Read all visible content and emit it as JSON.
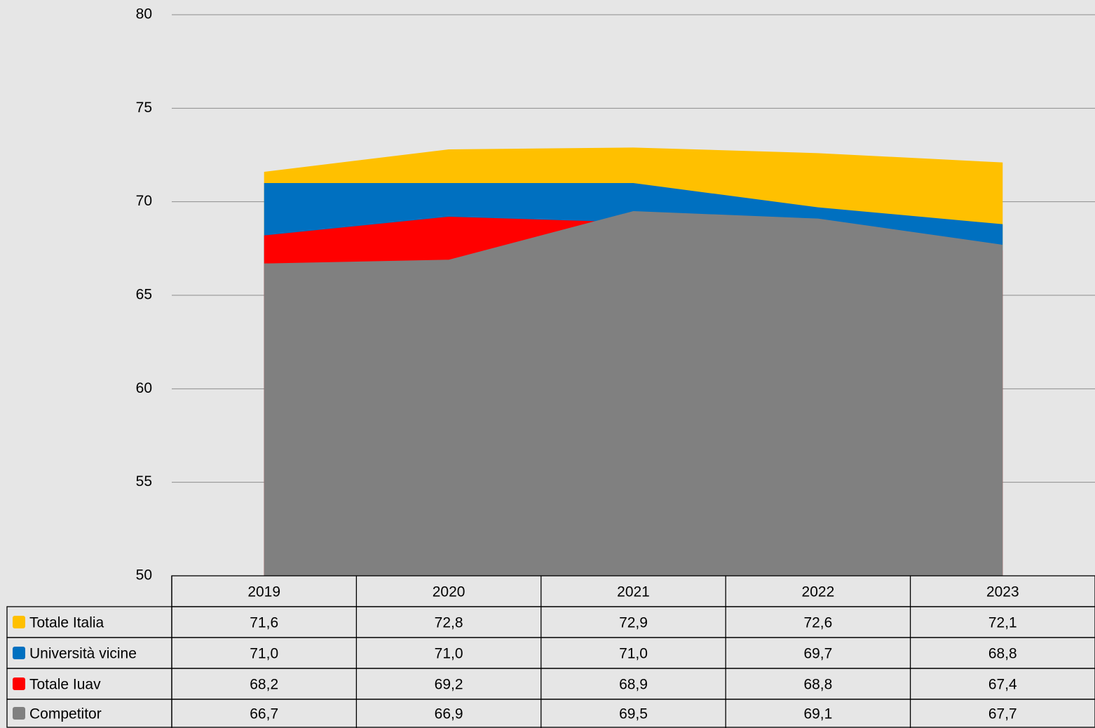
{
  "chart_data": {
    "type": "area",
    "categories": [
      "2019",
      "2020",
      "2021",
      "2022",
      "2023"
    ],
    "series": [
      {
        "name": "Totale Italia",
        "color": "#ffc000",
        "values": [
          71.6,
          72.8,
          72.9,
          72.6,
          72.1
        ],
        "value_labels": [
          "71,6",
          "72,8",
          "72,9",
          "72,6",
          "72,1"
        ]
      },
      {
        "name": "Università vicine",
        "color": "#0070c0",
        "values": [
          71.0,
          71.0,
          71.0,
          69.7,
          68.8
        ],
        "value_labels": [
          "71,0",
          "71,0",
          "71,0",
          "69,7",
          "68,8"
        ]
      },
      {
        "name": "Totale Iuav",
        "color": "#ff0000",
        "values": [
          68.2,
          69.2,
          68.9,
          68.8,
          67.4
        ],
        "value_labels": [
          "68,2",
          "69,2",
          "68,9",
          "68,8",
          "67,4"
        ]
      },
      {
        "name": "Competitor",
        "color": "#808080",
        "values": [
          66.7,
          66.9,
          69.5,
          69.1,
          67.7
        ],
        "value_labels": [
          "66,7",
          "66,9",
          "69,5",
          "69,1",
          "67,7"
        ]
      }
    ],
    "ylim": [
      50,
      80
    ],
    "yticks": [
      50,
      55,
      60,
      65,
      70,
      75,
      80
    ],
    "grid": true
  }
}
